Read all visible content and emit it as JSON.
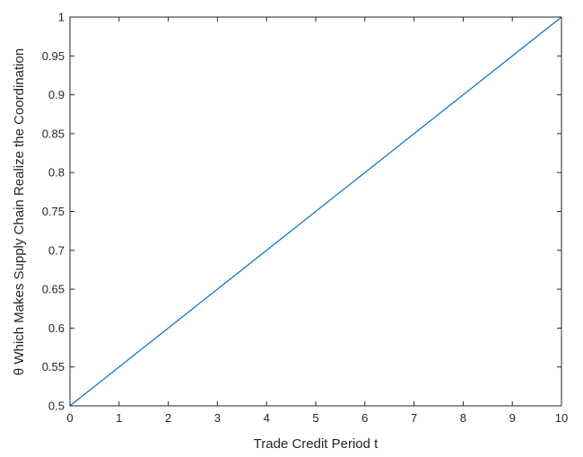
{
  "chart_data": {
    "type": "line",
    "xlabel": "Trade Credit Period  t",
    "ylabel": "θ Which Makes Supply Chain Realize the Coordination",
    "xlim": [
      0,
      10
    ],
    "ylim": [
      0.5,
      1
    ],
    "x_ticks": [
      "0",
      "1",
      "2",
      "3",
      "4",
      "5",
      "6",
      "7",
      "8",
      "9",
      "10"
    ],
    "y_ticks": [
      "0.5",
      "0.55",
      "0.6",
      "0.65",
      "0.7",
      "0.75",
      "0.8",
      "0.85",
      "0.9",
      "0.95",
      "1"
    ],
    "grid": false,
    "series": [
      {
        "x": [
          0,
          10
        ],
        "y": [
          0.5,
          1.0
        ],
        "color": "#0072BD"
      }
    ]
  }
}
